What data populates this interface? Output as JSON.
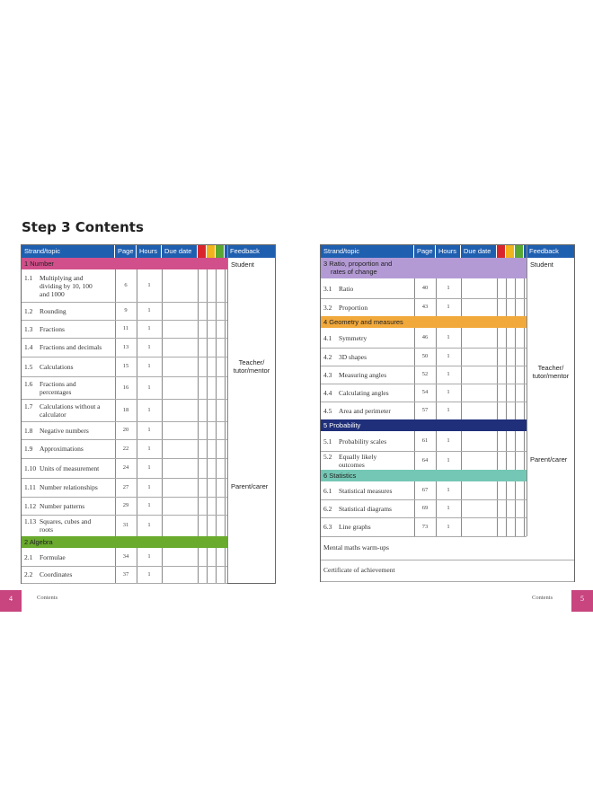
{
  "title": "Step 3 Contents",
  "headers": {
    "strand": "Strand/topic",
    "page": "Page",
    "hours": "Hours",
    "due": "Due date",
    "feedback": "Feedback"
  },
  "colors": {
    "header": "#1f5fb0",
    "red": "#d9262c",
    "amber": "#f2b41c",
    "green": "#5aa832"
  },
  "left": {
    "strands": [
      {
        "label": "1 Number",
        "color": "#d14f8a"
      },
      {
        "label": "2 Algebra",
        "color": "#6aab2e"
      }
    ],
    "rows": [
      {
        "num": "1.1",
        "text": "Multiplying and",
        "text2": "dividing by 10, 100",
        "text3": "and 1000",
        "page": "6",
        "hours": "1"
      },
      {
        "num": "1.2",
        "text": "Rounding",
        "page": "9",
        "hours": "1"
      },
      {
        "num": "1.3",
        "text": "Fractions",
        "page": "11",
        "hours": "1"
      },
      {
        "num": "1.4",
        "text": "Fractions and decimals",
        "page": "13",
        "hours": "1"
      },
      {
        "num": "1.5",
        "text": "Calculations",
        "page": "15",
        "hours": "1"
      },
      {
        "num": "1.6",
        "text": "Fractions and",
        "text2": "percentages",
        "page": "16",
        "hours": "1"
      },
      {
        "num": "1.7",
        "text": "Calculations without a",
        "text2": "calculator",
        "page": "18",
        "hours": "1"
      },
      {
        "num": "1.8",
        "text": "Negative numbers",
        "page": "20",
        "hours": "1"
      },
      {
        "num": "1.9",
        "text": "Approximations",
        "page": "22",
        "hours": "1"
      },
      {
        "num": "1.10",
        "text": "Units of measurement",
        "page": "24",
        "hours": "1"
      },
      {
        "num": "1.11",
        "text": "Number relationships",
        "page": "27",
        "hours": "1"
      },
      {
        "num": "1.12",
        "text": "Number patterns",
        "page": "29",
        "hours": "1"
      },
      {
        "num": "1.13",
        "text": "Squares, cubes and",
        "text2": "roots",
        "page": "31",
        "hours": "1"
      },
      {
        "num": "2.1",
        "text": "Formulae",
        "page": "34",
        "hours": "1"
      },
      {
        "num": "2.2",
        "text": "Coordinates",
        "page": "37",
        "hours": "1"
      }
    ],
    "feedback": {
      "student": "Student",
      "teacher1": "Teacher/",
      "teacher2": "tutor/mentor",
      "parent": "Parent/carer"
    }
  },
  "right": {
    "strands": [
      {
        "label": "3 Ratio, proportion and",
        "label2": "rates of change",
        "color": "#b39ad4"
      },
      {
        "label": "4 Geometry and measures",
        "color": "#f2a93b"
      },
      {
        "label": "5 Probability",
        "color": "#1f2f7a"
      },
      {
        "label": "6 Statistics",
        "color": "#74c7b4"
      }
    ],
    "rows": [
      {
        "num": "3.1",
        "text": "Ratio",
        "page": "40",
        "hours": "1"
      },
      {
        "num": "3.2",
        "text": "Proportion",
        "page": "43",
        "hours": "1"
      },
      {
        "num": "4.1",
        "text": "Symmetry",
        "page": "46",
        "hours": "1"
      },
      {
        "num": "4.2",
        "text": "3D shapes",
        "page": "50",
        "hours": "1"
      },
      {
        "num": "4.3",
        "text": "Measuring angles",
        "page": "52",
        "hours": "1"
      },
      {
        "num": "4.4",
        "text": "Calculating angles",
        "page": "54",
        "hours": "1"
      },
      {
        "num": "4.5",
        "text": "Area and perimeter",
        "page": "57",
        "hours": "1"
      },
      {
        "num": "5.1",
        "text": "Probability scales",
        "page": "61",
        "hours": "1"
      },
      {
        "num": "5.2",
        "text": "Equally likely",
        "text2": "outcomes",
        "page": "64",
        "hours": "1"
      },
      {
        "num": "6.1",
        "text": "Statistical measures",
        "page": "67",
        "hours": "1"
      },
      {
        "num": "6.2",
        "text": "Statistical diagrams",
        "page": "69",
        "hours": "1"
      },
      {
        "num": "6.3",
        "text": "Line graphs",
        "page": "73",
        "hours": "1"
      }
    ],
    "extra": [
      "Mental maths warm-ups",
      "Certificate of achievement"
    ],
    "feedback": {
      "student": "Student",
      "teacher1": "Teacher/",
      "teacher2": "tutor/mentor",
      "parent": "Parent/carer"
    }
  },
  "footer": {
    "left_page": "4",
    "left_label": "Contents",
    "right_label": "Contents",
    "right_page": "5"
  }
}
